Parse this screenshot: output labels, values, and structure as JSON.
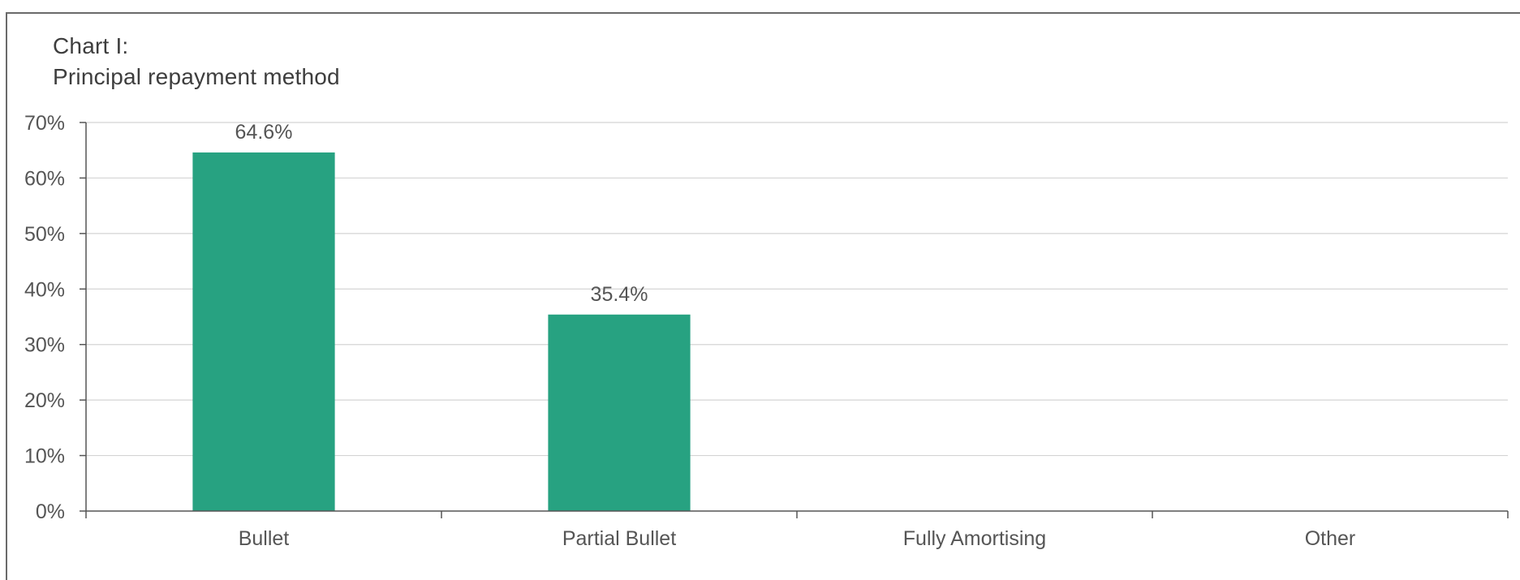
{
  "chart_data": {
    "type": "bar",
    "title": "Chart I:",
    "subtitle": "Principal repayment method",
    "categories": [
      "Bullet",
      "Partial Bullet",
      "Fully Amortising",
      "Other"
    ],
    "values": [
      64.6,
      35.4,
      0,
      0
    ],
    "data_labels": [
      "64.6%",
      "35.4%",
      "",
      ""
    ],
    "ylim": [
      0,
      70
    ],
    "yticks": [
      0,
      10,
      20,
      30,
      40,
      50,
      60,
      70
    ],
    "ytick_labels": [
      "0%",
      "10%",
      "20%",
      "30%",
      "40%",
      "50%",
      "60%",
      "70%"
    ],
    "xlabel": "",
    "ylabel": "",
    "grid": true,
    "legend": "none",
    "bar_color": "#27a281",
    "grid_color": "#d4d4d4",
    "axis_color": "#555555"
  }
}
